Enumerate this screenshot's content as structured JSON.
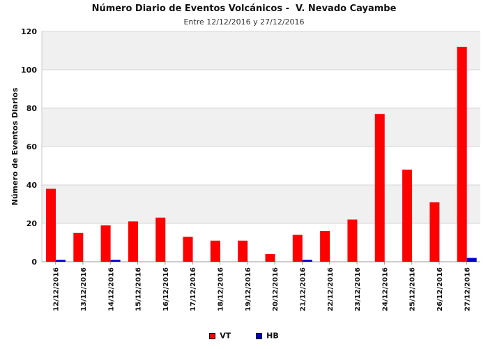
{
  "chart_data": {
    "type": "bar",
    "title": "Número Diario de Eventos Volcánicos -  V. Nevado Cayambe",
    "subtitle": "Entre 12/12/2016 y 27/12/2016",
    "xlabel": "",
    "ylabel": "Número de Eventos Diarios",
    "ylim": [
      0,
      120
    ],
    "yticks": [
      0,
      20,
      40,
      60,
      80,
      100,
      120
    ],
    "grid": true,
    "legend_position": "bottom",
    "categories": [
      "12/12/2016",
      "13/12/2016",
      "14/12/2016",
      "15/12/2016",
      "16/12/2016",
      "17/12/2016",
      "18/12/2016",
      "19/12/2016",
      "20/12/2016",
      "21/12/2016",
      "22/12/2016",
      "23/12/2016",
      "24/12/2016",
      "25/12/2016",
      "26/12/2016",
      "27/12/2016"
    ],
    "series": [
      {
        "name": "VT",
        "color": "#ff0000",
        "values": [
          38,
          15,
          19,
          21,
          23,
          13,
          11,
          11,
          4,
          14,
          16,
          22,
          77,
          48,
          31,
          112
        ]
      },
      {
        "name": "HB",
        "color": "#0000cc",
        "values": [
          1,
          0,
          1,
          0,
          0,
          0,
          0,
          0,
          0,
          1,
          0,
          0,
          0,
          0,
          0,
          2
        ]
      }
    ]
  }
}
